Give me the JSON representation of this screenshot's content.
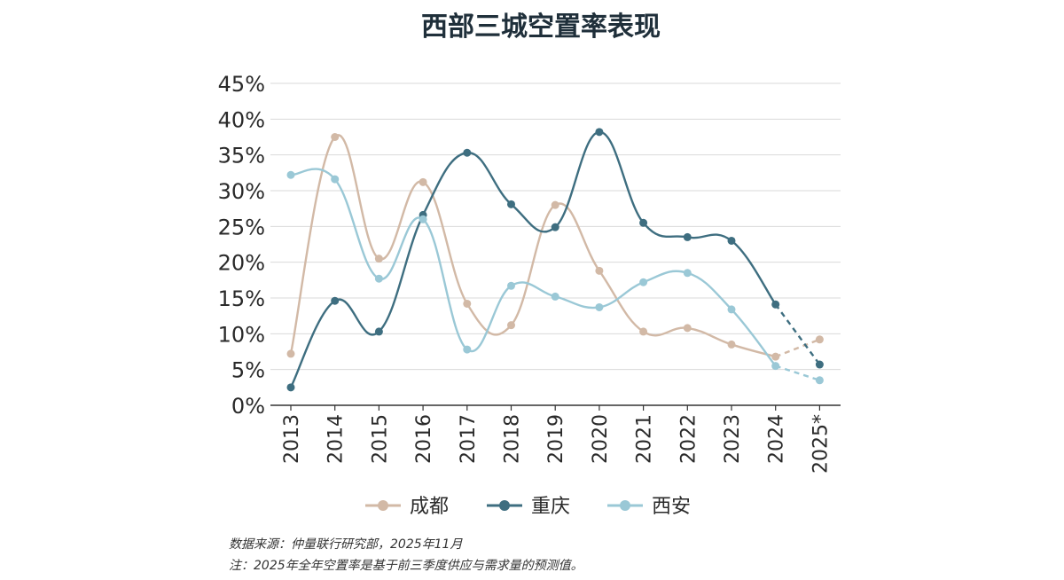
{
  "chart_data": {
    "type": "line",
    "title": "西部三城空置率表现",
    "categories": [
      "2013",
      "2014",
      "2015",
      "2016",
      "2017",
      "2018",
      "2019",
      "2020",
      "2021",
      "2022",
      "2023",
      "2024",
      "2025*"
    ],
    "yticks": [
      "0%",
      "5%",
      "10%",
      "15%",
      "20%",
      "25%",
      "30%",
      "35%",
      "40%",
      "45%"
    ],
    "ylim": [
      0,
      45
    ],
    "forecast_from_index": 11,
    "series": [
      {
        "name": "成都",
        "color": "#d2b9a6",
        "values": [
          7.2,
          37.5,
          20.5,
          31.2,
          14.2,
          11.2,
          28.0,
          18.8,
          10.3,
          10.8,
          8.5,
          6.8,
          9.2
        ]
      },
      {
        "name": "重庆",
        "color": "#3e6e80",
        "values": [
          2.5,
          14.6,
          10.3,
          26.6,
          35.3,
          28.1,
          24.9,
          38.2,
          25.5,
          23.5,
          23.0,
          14.1,
          5.7
        ]
      },
      {
        "name": "西安",
        "color": "#9ac8d6",
        "values": [
          32.2,
          31.6,
          17.7,
          26.0,
          7.8,
          16.7,
          15.2,
          13.7,
          17.2,
          18.5,
          13.4,
          5.5,
          3.5
        ]
      }
    ]
  },
  "footnotes": {
    "source": "数据来源：仲量联行研究部，2025年11月",
    "note": "注：2025年全年空置率是基于前三季度供应与需求量的预测值。"
  }
}
